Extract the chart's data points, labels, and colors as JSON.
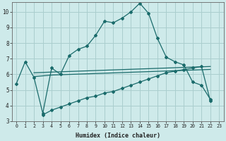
{
  "xlabel": "Humidex (Indice chaleur)",
  "bg_color": "#ceeaea",
  "grid_color": "#aacece",
  "line_color": "#1a6b6b",
  "xlim": [
    -0.5,
    23.5
  ],
  "ylim": [
    3,
    10.6
  ],
  "yticks": [
    3,
    4,
    5,
    6,
    7,
    8,
    9,
    10
  ],
  "xticks": [
    0,
    1,
    2,
    3,
    4,
    5,
    6,
    7,
    8,
    9,
    10,
    11,
    12,
    13,
    14,
    15,
    16,
    17,
    18,
    19,
    20,
    21,
    22,
    23
  ],
  "curve1_x": [
    0,
    1,
    2,
    3,
    4,
    5,
    6,
    7,
    8,
    9,
    10,
    11,
    12,
    13,
    14,
    15,
    16,
    17,
    18,
    19,
    20,
    21,
    22
  ],
  "curve1_y": [
    5.4,
    6.8,
    5.8,
    3.5,
    6.4,
    6.0,
    7.2,
    7.6,
    7.8,
    8.5,
    9.4,
    9.3,
    9.6,
    10.0,
    10.55,
    9.9,
    8.3,
    7.1,
    6.8,
    6.6,
    5.5,
    5.3,
    4.4
  ],
  "curve2_x": [
    3,
    4,
    5,
    6,
    7,
    8,
    9,
    10,
    11,
    12,
    13,
    14,
    15,
    16,
    17,
    18,
    19,
    20,
    21,
    22
  ],
  "curve2_y": [
    3.4,
    3.7,
    3.9,
    4.1,
    4.3,
    4.5,
    4.6,
    4.8,
    4.9,
    5.1,
    5.3,
    5.5,
    5.7,
    5.9,
    6.1,
    6.2,
    6.3,
    6.4,
    6.5,
    4.3
  ],
  "flat1_x": [
    2,
    3,
    4,
    5,
    6,
    7,
    8,
    9,
    10,
    11,
    12,
    13,
    14,
    15,
    16,
    17,
    18,
    19,
    20,
    21,
    22
  ],
  "flat1_y": [
    5.85,
    5.9,
    5.95,
    5.97,
    5.99,
    6.01,
    6.03,
    6.05,
    6.07,
    6.09,
    6.11,
    6.13,
    6.15,
    6.17,
    6.19,
    6.21,
    6.23,
    6.25,
    6.27,
    6.29,
    6.31
  ],
  "flat2_x": [
    2,
    3,
    4,
    5,
    6,
    7,
    8,
    9,
    10,
    11,
    12,
    13,
    14,
    15,
    16,
    17,
    18,
    19,
    20,
    21,
    22
  ],
  "flat2_y": [
    6.1,
    6.12,
    6.14,
    6.16,
    6.18,
    6.2,
    6.22,
    6.24,
    6.26,
    6.28,
    6.3,
    6.32,
    6.34,
    6.36,
    6.38,
    6.4,
    6.42,
    6.44,
    6.46,
    6.48,
    6.5
  ]
}
